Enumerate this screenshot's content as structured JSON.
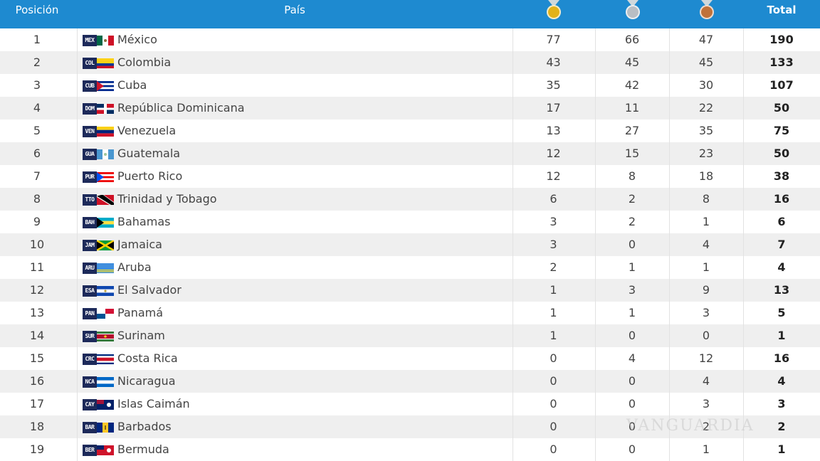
{
  "header": {
    "position": "Posición",
    "country": "País",
    "gold_icon": "gold-medal-icon",
    "silver_icon": "silver-medal-icon",
    "bronze_icon": "bronze-medal-icon",
    "total": "Total"
  },
  "colors": {
    "header_bg": "#1e8ad0",
    "gold": "#e2b21a",
    "silver": "#b8bec4",
    "bronze": "#c0713a",
    "row_alt": "#efefef"
  },
  "rows": [
    {
      "pos": "1",
      "code": "MEX",
      "country": "México",
      "gold": "77",
      "silver": "66",
      "bronze": "47",
      "total": "190"
    },
    {
      "pos": "2",
      "code": "COL",
      "country": "Colombia",
      "gold": "43",
      "silver": "45",
      "bronze": "45",
      "total": "133"
    },
    {
      "pos": "3",
      "code": "CUB",
      "country": "Cuba",
      "gold": "35",
      "silver": "42",
      "bronze": "30",
      "total": "107"
    },
    {
      "pos": "4",
      "code": "DOM",
      "country": "República Dominicana",
      "gold": "17",
      "silver": "11",
      "bronze": "22",
      "total": "50"
    },
    {
      "pos": "5",
      "code": "VEN",
      "country": "Venezuela",
      "gold": "13",
      "silver": "27",
      "bronze": "35",
      "total": "75"
    },
    {
      "pos": "6",
      "code": "GUA",
      "country": "Guatemala",
      "gold": "12",
      "silver": "15",
      "bronze": "23",
      "total": "50"
    },
    {
      "pos": "7",
      "code": "PUR",
      "country": "Puerto Rico",
      "gold": "12",
      "silver": "8",
      "bronze": "18",
      "total": "38"
    },
    {
      "pos": "8",
      "code": "TTO",
      "country": "Trinidad y Tobago",
      "gold": "6",
      "silver": "2",
      "bronze": "8",
      "total": "16"
    },
    {
      "pos": "9",
      "code": "BAH",
      "country": "Bahamas",
      "gold": "3",
      "silver": "2",
      "bronze": "1",
      "total": "6"
    },
    {
      "pos": "10",
      "code": "JAM",
      "country": "Jamaica",
      "gold": "3",
      "silver": "0",
      "bronze": "4",
      "total": "7"
    },
    {
      "pos": "11",
      "code": "ARU",
      "country": "Aruba",
      "gold": "2",
      "silver": "1",
      "bronze": "1",
      "total": "4"
    },
    {
      "pos": "12",
      "code": "ESA",
      "country": "El Salvador",
      "gold": "1",
      "silver": "3",
      "bronze": "9",
      "total": "13"
    },
    {
      "pos": "13",
      "code": "PAN",
      "country": "Panamá",
      "gold": "1",
      "silver": "1",
      "bronze": "3",
      "total": "5"
    },
    {
      "pos": "14",
      "code": "SUR",
      "country": "Surinam",
      "gold": "1",
      "silver": "0",
      "bronze": "0",
      "total": "1"
    },
    {
      "pos": "15",
      "code": "CRC",
      "country": "Costa Rica",
      "gold": "0",
      "silver": "4",
      "bronze": "12",
      "total": "16"
    },
    {
      "pos": "16",
      "code": "NCA",
      "country": "Nicaragua",
      "gold": "0",
      "silver": "0",
      "bronze": "4",
      "total": "4"
    },
    {
      "pos": "17",
      "code": "CAY",
      "country": "Islas Caimán",
      "gold": "0",
      "silver": "0",
      "bronze": "3",
      "total": "3"
    },
    {
      "pos": "18",
      "code": "BAR",
      "country": "Barbados",
      "gold": "0",
      "silver": "0",
      "bronze": "2",
      "total": "2"
    },
    {
      "pos": "19",
      "code": "BER",
      "country": "Bermuda",
      "gold": "0",
      "silver": "0",
      "bronze": "1",
      "total": "1"
    }
  ],
  "watermark": "VANGUARDIA"
}
